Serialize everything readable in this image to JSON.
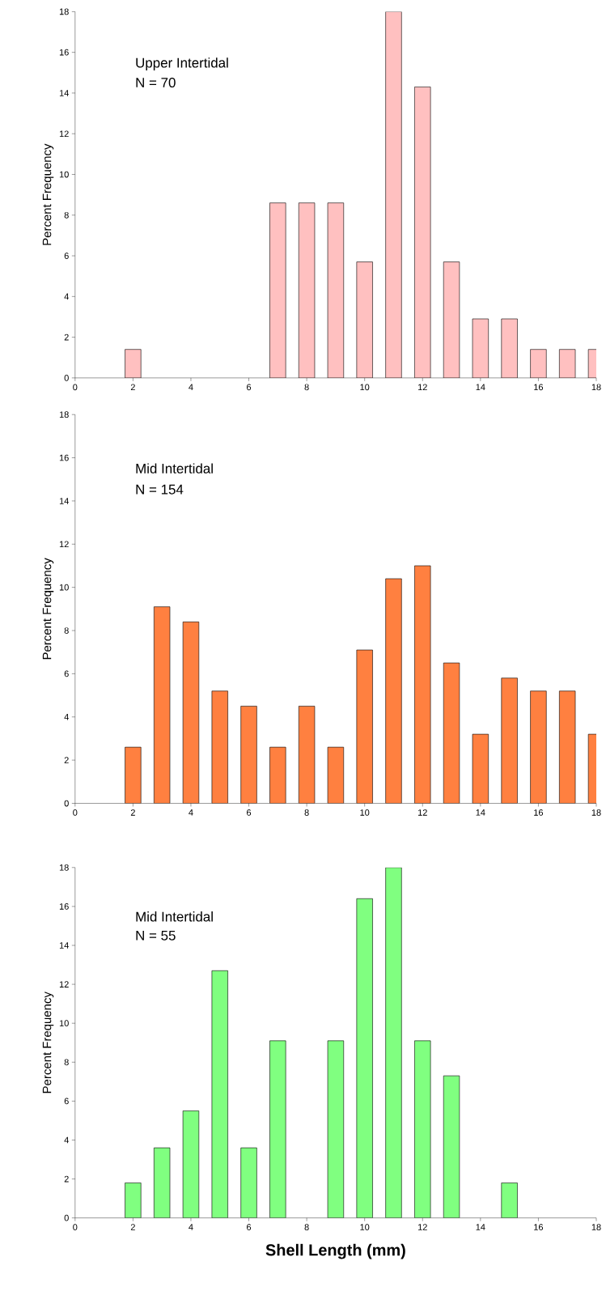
{
  "chart_data": [
    {
      "type": "bar",
      "ylabel": "Percent Frequency",
      "annotations": [
        "Upper Intertidal",
        "N = 70"
      ],
      "color": "#ffc0c0",
      "x": [
        2,
        7,
        8,
        9,
        10,
        11,
        12,
        13,
        14,
        15,
        16,
        17,
        18
      ],
      "values": [
        1.4,
        8.6,
        8.6,
        8.6,
        5.7,
        18,
        14.3,
        5.7,
        2.9,
        2.9,
        1.4,
        1.4,
        1.4
      ],
      "xlim": [
        0,
        18
      ],
      "xticks": [
        0,
        2,
        4,
        6,
        8,
        10,
        12,
        14,
        16,
        18
      ],
      "ylim": [
        0,
        18
      ],
      "yticks": [
        0,
        2,
        4,
        6,
        8,
        10,
        12,
        14,
        16,
        18
      ]
    },
    {
      "type": "bar",
      "ylabel": "Percent Frequency",
      "annotations": [
        "Mid Intertidal",
        "N = 154"
      ],
      "color": "#ff8040",
      "x": [
        2,
        3,
        4,
        5,
        6,
        7,
        8,
        9,
        10,
        11,
        12,
        13,
        14,
        15,
        16,
        17,
        18
      ],
      "values": [
        2.6,
        9.1,
        8.4,
        5.2,
        4.5,
        2.6,
        4.5,
        2.6,
        7.1,
        10.4,
        11.0,
        6.5,
        3.2,
        5.8,
        5.2,
        5.2,
        3.2
      ],
      "xlim": [
        0,
        18
      ],
      "xticks": [
        0,
        2,
        4,
        6,
        8,
        10,
        12,
        14,
        16,
        18
      ],
      "ylim": [
        0,
        18
      ],
      "yticks": [
        0,
        2,
        4,
        6,
        8,
        10,
        12,
        14,
        16,
        18
      ]
    },
    {
      "type": "bar",
      "ylabel": "Percent Frequency",
      "xlabel": "Shell Length (mm)",
      "annotations": [
        "Mid Intertidal",
        "N = 55"
      ],
      "color": "#80ff80",
      "x": [
        2,
        3,
        4,
        5,
        6,
        7,
        9,
        10,
        11,
        12,
        13,
        15
      ],
      "values": [
        1.8,
        3.6,
        5.5,
        12.7,
        3.6,
        9.1,
        9.1,
        16.4,
        18,
        9.1,
        7.3,
        1.8
      ],
      "xlim": [
        0,
        18
      ],
      "xticks": [
        0,
        2,
        4,
        6,
        8,
        10,
        12,
        14,
        16,
        18
      ],
      "ylim": [
        0,
        18
      ],
      "yticks": [
        0,
        2,
        4,
        6,
        8,
        10,
        12,
        14,
        16,
        18
      ]
    }
  ]
}
